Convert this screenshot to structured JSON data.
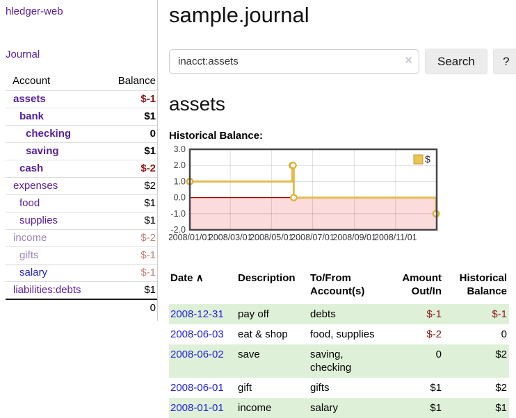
{
  "app": {
    "title": "hledger-web"
  },
  "nav": {
    "journal": "Journal"
  },
  "sidebar": {
    "header": {
      "account": "Account",
      "balance": "Balance"
    },
    "accounts": [
      {
        "name": "assets",
        "level": 1,
        "balance": "$-1",
        "style": "bold",
        "balance_style": "neg-bold"
      },
      {
        "name": "bank",
        "level": 2,
        "balance": "$1",
        "style": "bold",
        "balance_style": "bold"
      },
      {
        "name": "checking",
        "level": 3,
        "balance": "0",
        "style": "bold",
        "balance_style": "bold"
      },
      {
        "name": "saving",
        "level": 3,
        "balance": "$1",
        "style": "bold",
        "balance_style": "bold"
      },
      {
        "name": "cash",
        "level": 2,
        "balance": "$-2",
        "style": "bold",
        "balance_style": "neg-bold"
      },
      {
        "name": "expenses",
        "level": 1,
        "balance": "$2",
        "style": "normal",
        "balance_style": "normal"
      },
      {
        "name": "food",
        "level": 2,
        "balance": "$1",
        "style": "normal",
        "balance_style": "normal"
      },
      {
        "name": "supplies",
        "level": 2,
        "balance": "$1",
        "style": "normal",
        "balance_style": "normal"
      },
      {
        "name": "income",
        "level": 1,
        "balance": "$-2",
        "style": "faded",
        "balance_style": "neg-faded"
      },
      {
        "name": "gifts",
        "level": 2,
        "balance": "$-1",
        "style": "faded",
        "balance_style": "neg-faded"
      },
      {
        "name": "salary",
        "level": 2,
        "balance": "$-1",
        "style": "blue",
        "balance_style": "neg-faded"
      },
      {
        "name": "liabilities:debts",
        "level": 1,
        "balance": "$1",
        "style": "normal",
        "balance_style": "normal"
      }
    ],
    "total": "0"
  },
  "header": {
    "title": "sample.journal"
  },
  "search": {
    "value": "inacct:assets",
    "clear_icon": "✕",
    "button": "Search",
    "help_button": "?"
  },
  "register": {
    "heading": "assets",
    "chart_label": "Historical Balance:"
  },
  "chart_data": {
    "type": "line",
    "title": "Historical Balance",
    "step": true,
    "legend": {
      "label": "$",
      "position": "top-right"
    },
    "series": [
      {
        "name": "$",
        "points": [
          [
            "2008-01-01",
            1
          ],
          [
            "2008-06-01",
            2
          ],
          [
            "2008-06-02",
            2
          ],
          [
            "2008-06-03",
            0
          ],
          [
            "2008-12-31",
            -1
          ]
        ]
      }
    ],
    "xlim": [
      "2008-01-01",
      "2009-01-01"
    ],
    "ylim": [
      -2,
      3
    ],
    "x_tick_dates": [
      "2008-01-01",
      "2008-03-01",
      "2008-05-01",
      "2008-07-01",
      "2008-09-01",
      "2008-11-01"
    ],
    "x_tick_labels": [
      "2008/01/01",
      "2008/03/01",
      "2008/05/01",
      "2008/07/01",
      "2008/09/01",
      "2008/11/01"
    ],
    "y_ticks": [
      "3.0",
      "2.0",
      "1.0",
      "0.0",
      "-1.0",
      "-2.0"
    ],
    "grid": true,
    "colors": {
      "line": "#e2bc4e",
      "marker_ring": "#d9b33c",
      "negative_fill": "#fbdbdb",
      "zero_line": "#a00000",
      "border": "#464646",
      "legend_fill": "#eac550",
      "legend_border": "#bd9b30"
    }
  },
  "table": {
    "columns": [
      {
        "label": "Date",
        "sort_icon": "∧"
      },
      {
        "label": "Description"
      },
      {
        "label": "To/From Account(s)"
      },
      {
        "label": "Amount Out/In"
      },
      {
        "label": "Historical Balance"
      }
    ],
    "rows": [
      {
        "date": "2008-12-31",
        "description": "pay off",
        "accounts": "debts",
        "amount": "$-1",
        "amount_neg": true,
        "balance": "$-1",
        "balance_neg": true
      },
      {
        "date": "2008-06-03",
        "description": "eat & shop",
        "accounts": "food, supplies",
        "amount": "$-2",
        "amount_neg": true,
        "balance": "0",
        "balance_neg": false
      },
      {
        "date": "2008-06-02",
        "description": "save",
        "accounts": "saving, checking",
        "amount": "0",
        "amount_neg": false,
        "balance": "$2",
        "balance_neg": false
      },
      {
        "date": "2008-06-01",
        "description": "gift",
        "accounts": "gifts",
        "amount": "$1",
        "amount_neg": false,
        "balance": "$2",
        "balance_neg": false
      },
      {
        "date": "2008-01-01",
        "description": "income",
        "accounts": "salary",
        "amount": "$1",
        "amount_neg": false,
        "balance": "$1",
        "balance_neg": false
      }
    ]
  }
}
